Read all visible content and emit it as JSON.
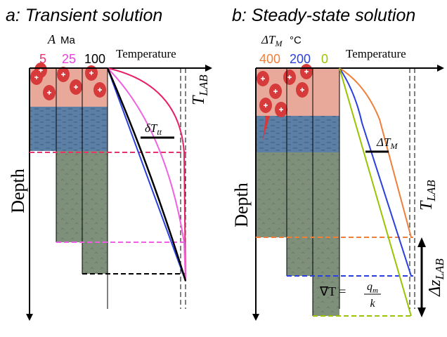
{
  "panels": [
    {
      "title": "a: Transient solution",
      "legend_symbol": "A",
      "legend_unit": "Ma",
      "legend_items": [
        "5",
        "25",
        "100"
      ],
      "x_axis": "Temperature",
      "y_axis": "Depth",
      "delta_symbol": "δT",
      "delta_sub": "tt",
      "tlab_symbol": "T",
      "tlab_sub": "LAB"
    },
    {
      "title": "b: Steady-state solution",
      "legend_symbol": "ΔT",
      "legend_symbol_sub": "M",
      "legend_unit": "°C",
      "legend_items": [
        "400",
        "200",
        "0"
      ],
      "x_axis": "Temperature",
      "y_axis": "Depth",
      "delta_symbol": "ΔT",
      "delta_sub": "M",
      "tlab_symbol": "T",
      "tlab_sub": "LAB",
      "gradient": "∇T =",
      "flux_symbol": "q",
      "flux_sub": "m",
      "conductivity": "k",
      "dz_symbol": "Δz",
      "dz_sub": "LAB"
    }
  ]
}
